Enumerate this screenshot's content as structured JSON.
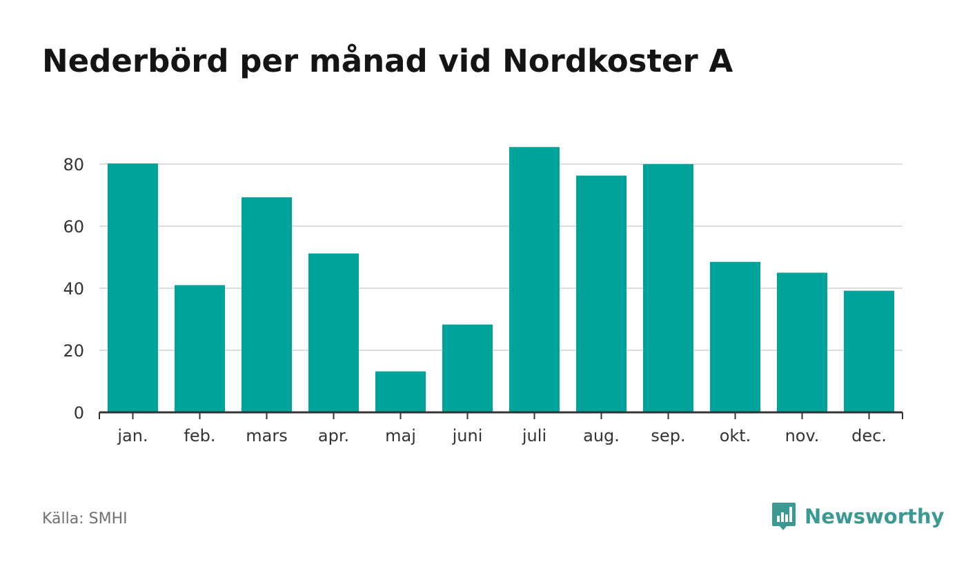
{
  "title": "Nederbörd per månad vid Nordkoster A",
  "source": "Källa: SMHI",
  "brand": {
    "name": "Newsworthy",
    "icon": "newsworthy-logo-icon"
  },
  "colors": {
    "bar": "#00a39a",
    "grid": "#dddddd",
    "axis": "#333333",
    "brand": "#3a9a92"
  },
  "chart_data": {
    "type": "bar",
    "title": "Nederbörd per månad vid Nordkoster A",
    "categories": [
      "jan.",
      "feb.",
      "mars",
      "apr.",
      "maj",
      "juni",
      "juli",
      "aug.",
      "sep.",
      "okt.",
      "nov.",
      "dec."
    ],
    "values": [
      80.2,
      41.0,
      69.3,
      51.2,
      13.2,
      28.3,
      85.5,
      76.3,
      80.0,
      48.5,
      45.0,
      39.2
    ],
    "yticks": [
      0,
      20,
      40,
      60,
      80
    ],
    "ylim": [
      0,
      90
    ],
    "xlabel": "",
    "ylabel": "",
    "grid": true,
    "legend": "none"
  }
}
